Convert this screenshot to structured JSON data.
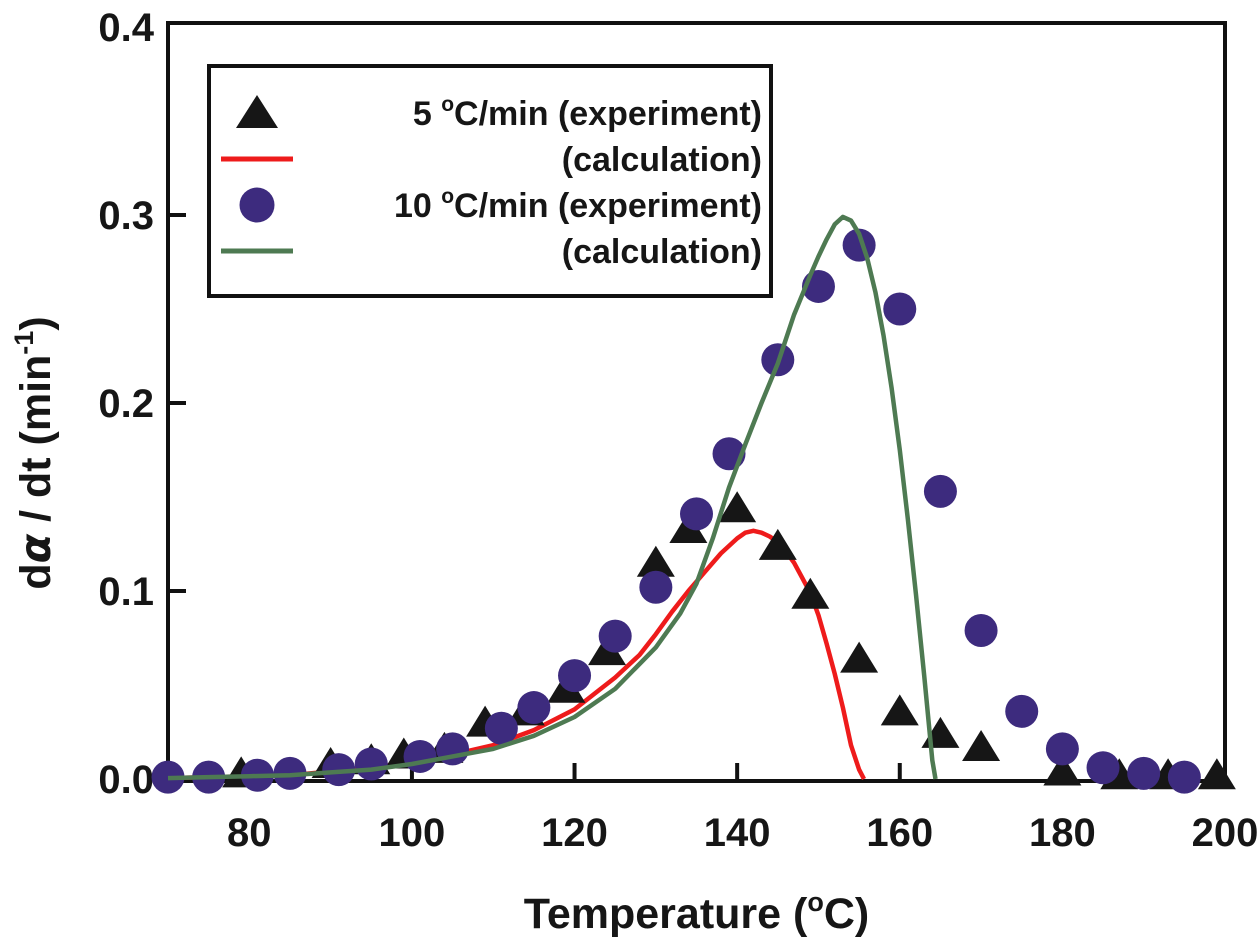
{
  "page": {
    "background": "#ffffff"
  },
  "chart_data": {
    "type": "line+scatter",
    "title": "",
    "xlabel": "Temperature (°C)",
    "ylabel": "dα / dt (min⁻¹)",
    "xlabel_segments": [
      {
        "t": "Temperature ("
      },
      {
        "t": "o",
        "sup": true
      },
      {
        "t": "C)"
      }
    ],
    "ylabel_segments": [
      {
        "t": "d"
      },
      {
        "t": "α",
        "italic": true
      },
      {
        "t": " / dt (min"
      },
      {
        "t": "-1",
        "sup": true
      },
      {
        "t": ")"
      }
    ],
    "x_axis": {
      "range": [
        70,
        200
      ],
      "ticks": [
        {
          "value": 80,
          "label": "80"
        },
        {
          "value": 100,
          "label": "100"
        },
        {
          "value": 120,
          "label": "120"
        },
        {
          "value": 140,
          "label": "140"
        },
        {
          "value": 160,
          "label": "160"
        },
        {
          "value": 180,
          "label": "180"
        },
        {
          "value": 200,
          "label": "200"
        }
      ]
    },
    "y_axis": {
      "range": [
        0,
        0.4
      ],
      "ticks": [
        {
          "value": 0.0,
          "label": "0.0"
        },
        {
          "value": 0.1,
          "label": "0.1"
        },
        {
          "value": 0.2,
          "label": "0.2"
        },
        {
          "value": 0.3,
          "label": "0.3"
        },
        {
          "value": 0.4,
          "label": "0.4"
        }
      ]
    },
    "axis_color": "#111111",
    "background_color": "#ffffff",
    "draw_order": [
      "calc5",
      "exp5",
      "exp10",
      "calc10"
    ],
    "series": [
      {
        "id": "exp5",
        "name": "5 °C/min (experiment)",
        "kind": "scatter",
        "marker": "triangle",
        "color": "#161616",
        "points": [
          [
            79,
            0.003
          ],
          [
            90,
            0.008
          ],
          [
            95,
            0.01
          ],
          [
            99,
            0.013
          ],
          [
            104,
            0.016
          ],
          [
            109,
            0.03
          ],
          [
            114,
            0.036
          ],
          [
            119,
            0.048
          ],
          [
            124,
            0.068
          ],
          [
            130,
            0.115
          ],
          [
            134,
            0.133
          ],
          [
            140,
            0.144
          ],
          [
            145,
            0.124
          ],
          [
            149,
            0.098
          ],
          [
            155,
            0.064
          ],
          [
            160,
            0.036
          ],
          [
            165,
            0.024
          ],
          [
            170,
            0.017
          ],
          [
            180,
            0.004
          ],
          [
            187,
            0.002
          ],
          [
            193,
            0.002
          ],
          [
            199,
            0.002
          ]
        ]
      },
      {
        "id": "calc5",
        "name": "5 °C/min (calculation)",
        "kind": "line",
        "color": "#ee1b1b",
        "points": [
          [
            70,
            0.0005
          ],
          [
            75,
            0.001
          ],
          [
            80,
            0.0015
          ],
          [
            85,
            0.002
          ],
          [
            90,
            0.004
          ],
          [
            95,
            0.006
          ],
          [
            100,
            0.009
          ],
          [
            105,
            0.013
          ],
          [
            110,
            0.018
          ],
          [
            115,
            0.026
          ],
          [
            120,
            0.037
          ],
          [
            125,
            0.054
          ],
          [
            128,
            0.066
          ],
          [
            130,
            0.077
          ],
          [
            132,
            0.089
          ],
          [
            134,
            0.1
          ],
          [
            136,
            0.11
          ],
          [
            138,
            0.12
          ],
          [
            140,
            0.128
          ],
          [
            141,
            0.131
          ],
          [
            142,
            0.132
          ],
          [
            143,
            0.131
          ],
          [
            144,
            0.129
          ],
          [
            145,
            0.126
          ],
          [
            146,
            0.121
          ],
          [
            147,
            0.115
          ],
          [
            148,
            0.107
          ],
          [
            149,
            0.099
          ],
          [
            150,
            0.087
          ],
          [
            151,
            0.072
          ],
          [
            152,
            0.056
          ],
          [
            153,
            0.038
          ],
          [
            154,
            0.018
          ],
          [
            155,
            0.005
          ],
          [
            155.6,
            0.0
          ]
        ]
      },
      {
        "id": "exp10",
        "name": "10 °C/min (experiment)",
        "kind": "scatter",
        "marker": "circle",
        "color": "#3d2b7e",
        "points": [
          [
            70,
            0.001
          ],
          [
            75,
            0.001
          ],
          [
            81,
            0.002
          ],
          [
            85,
            0.003
          ],
          [
            91,
            0.005
          ],
          [
            95,
            0.008
          ],
          [
            101,
            0.012
          ],
          [
            105,
            0.016
          ],
          [
            111,
            0.027
          ],
          [
            115,
            0.038
          ],
          [
            120,
            0.055
          ],
          [
            125,
            0.076
          ],
          [
            130,
            0.102
          ],
          [
            135,
            0.141
          ],
          [
            139,
            0.173
          ],
          [
            145,
            0.223
          ],
          [
            150,
            0.262
          ],
          [
            155,
            0.284
          ],
          [
            160,
            0.25
          ],
          [
            165,
            0.153
          ],
          [
            170,
            0.079
          ],
          [
            175,
            0.036
          ],
          [
            180,
            0.016
          ],
          [
            185,
            0.006
          ],
          [
            190,
            0.003
          ],
          [
            195,
            0.001
          ]
        ]
      },
      {
        "id": "calc10",
        "name": "10 °C/min (calculation)",
        "kind": "line",
        "color": "#4e7a52",
        "points": [
          [
            70,
            0.0005
          ],
          [
            75,
            0.001
          ],
          [
            80,
            0.0015
          ],
          [
            85,
            0.002
          ],
          [
            90,
            0.0035
          ],
          [
            95,
            0.005
          ],
          [
            100,
            0.008
          ],
          [
            105,
            0.012
          ],
          [
            110,
            0.016
          ],
          [
            115,
            0.023
          ],
          [
            120,
            0.033
          ],
          [
            125,
            0.048
          ],
          [
            130,
            0.07
          ],
          [
            133,
            0.088
          ],
          [
            135,
            0.104
          ],
          [
            137,
            0.128
          ],
          [
            139,
            0.155
          ],
          [
            141,
            0.178
          ],
          [
            143,
            0.2
          ],
          [
            145,
            0.221
          ],
          [
            147,
            0.247
          ],
          [
            149,
            0.268
          ],
          [
            150,
            0.278
          ],
          [
            151,
            0.287
          ],
          [
            152,
            0.295
          ],
          [
            153,
            0.299
          ],
          [
            154,
            0.297
          ],
          [
            155,
            0.29
          ],
          [
            156,
            0.277
          ],
          [
            157,
            0.259
          ],
          [
            158,
            0.236
          ],
          [
            159,
            0.208
          ],
          [
            160,
            0.175
          ],
          [
            161,
            0.138
          ],
          [
            162,
            0.098
          ],
          [
            163,
            0.055
          ],
          [
            164,
            0.01
          ],
          [
            164.4,
            0.0
          ]
        ]
      }
    ],
    "legend": {
      "position": "upper-left",
      "border_color": "#111111",
      "fill_color": "#ffffff",
      "entries": [
        {
          "marker": "triangle",
          "marker_color": "#161616",
          "text_color": "#161616",
          "label": "5 °C/min (experiment)",
          "segments": [
            {
              "t": "5 "
            },
            {
              "t": "o",
              "sup": true
            },
            {
              "t": "C/min (experiment)"
            }
          ]
        },
        {
          "marker": "line",
          "marker_color": "#ee1b1b",
          "text_color": "#ee1b1b",
          "label": "(calculation)",
          "segments": [
            {
              "t": "(calculation)"
            }
          ]
        },
        {
          "marker": "circle",
          "marker_color": "#3d2b7e",
          "text_color": "#33277b",
          "label": "10 °C/min (experiment)",
          "segments": [
            {
              "t": "10 "
            },
            {
              "t": "o",
              "sup": true
            },
            {
              "t": "C/min (experiment)"
            }
          ]
        },
        {
          "marker": "line",
          "marker_color": "#4e7a52",
          "text_color": "#5d8266",
          "label": "(calculation)",
          "segments": [
            {
              "t": "(calculation)"
            }
          ]
        }
      ]
    }
  }
}
